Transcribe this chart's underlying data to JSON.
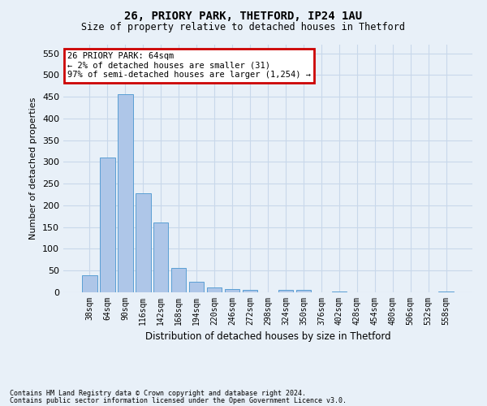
{
  "title1": "26, PRIORY PARK, THETFORD, IP24 1AU",
  "title2": "Size of property relative to detached houses in Thetford",
  "xlabel": "Distribution of detached houses by size in Thetford",
  "ylabel": "Number of detached properties",
  "footnote1": "Contains HM Land Registry data © Crown copyright and database right 2024.",
  "footnote2": "Contains public sector information licensed under the Open Government Licence v3.0.",
  "annotation_title": "26 PRIORY PARK: 64sqm",
  "annotation_line1": "← 2% of detached houses are smaller (31)",
  "annotation_line2": "97% of semi-detached houses are larger (1,254) →",
  "categories": [
    "38sqm",
    "64sqm",
    "90sqm",
    "116sqm",
    "142sqm",
    "168sqm",
    "194sqm",
    "220sqm",
    "246sqm",
    "272sqm",
    "298sqm",
    "324sqm",
    "350sqm",
    "376sqm",
    "402sqm",
    "428sqm",
    "454sqm",
    "480sqm",
    "506sqm",
    "532sqm",
    "558sqm"
  ],
  "values": [
    40,
    310,
    456,
    228,
    160,
    57,
    25,
    11,
    8,
    5,
    0,
    5,
    5,
    0,
    2,
    0,
    0,
    0,
    0,
    0,
    2
  ],
  "highlight_index": 1,
  "bar_color": "#aec6e8",
  "bar_edge_color": "#5a9fd4",
  "annotation_box_color": "#ffffff",
  "annotation_box_edge_color": "#cc0000",
  "grid_color": "#c8d8ea",
  "background_color": "#e8f0f8",
  "ylim": [
    0,
    570
  ],
  "yticks": [
    0,
    50,
    100,
    150,
    200,
    250,
    300,
    350,
    400,
    450,
    500,
    550
  ]
}
